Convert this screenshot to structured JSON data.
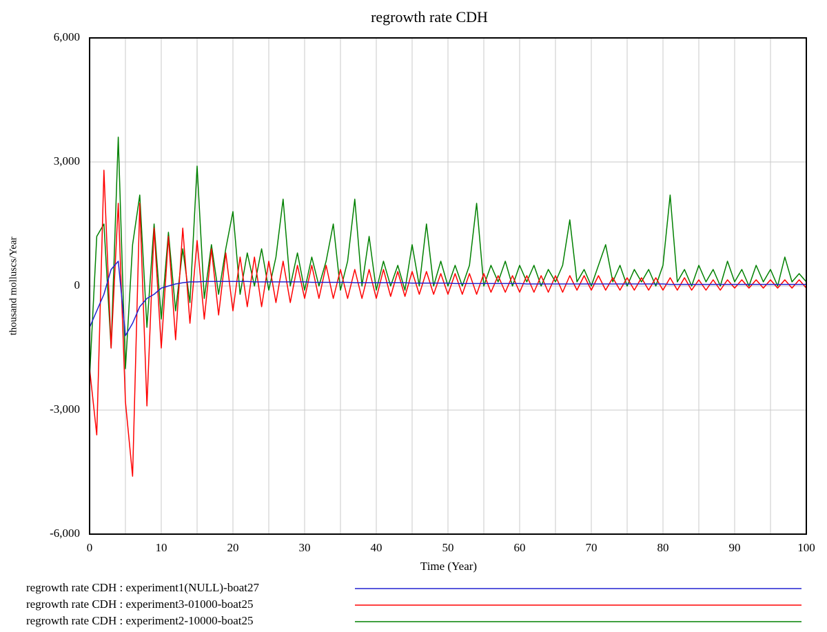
{
  "chart_data": {
    "type": "line",
    "title": "regrowth rate CDH",
    "xlabel": "Time (Year)",
    "ylabel": "thousand molluscs/Year",
    "xlim": [
      0,
      100
    ],
    "xticks": [
      0,
      10,
      20,
      30,
      40,
      50,
      60,
      70,
      80,
      90,
      100
    ],
    "xminor": [
      5,
      15,
      25,
      35,
      45,
      55,
      65,
      75,
      85,
      95
    ],
    "ylim": [
      -6000,
      6000
    ],
    "yticks": [
      {
        "value": -6000,
        "label": "-6,000"
      },
      {
        "value": -3000,
        "label": "-3,000"
      },
      0,
      {
        "value": 3000,
        "label": "3,000"
      },
      {
        "value": 6000,
        "label": "6,000"
      }
    ],
    "grid": true,
    "x": [
      0,
      1,
      2,
      3,
      4,
      5,
      6,
      7,
      8,
      9,
      10,
      11,
      12,
      13,
      14,
      15,
      16,
      17,
      18,
      19,
      20,
      21,
      22,
      23,
      24,
      25,
      26,
      27,
      28,
      29,
      30,
      31,
      32,
      33,
      34,
      35,
      36,
      37,
      38,
      39,
      40,
      41,
      42,
      43,
      44,
      45,
      46,
      47,
      48,
      49,
      50,
      51,
      52,
      53,
      54,
      55,
      56,
      57,
      58,
      59,
      60,
      61,
      62,
      63,
      64,
      65,
      66,
      67,
      68,
      69,
      70,
      71,
      72,
      73,
      74,
      75,
      76,
      77,
      78,
      79,
      80,
      81,
      82,
      83,
      84,
      85,
      86,
      87,
      88,
      89,
      90,
      91,
      92,
      93,
      94,
      95,
      96,
      97,
      98,
      99,
      100
    ],
    "series": [
      {
        "name": "regrowth rate CDH : experiment1(NULL)-boat27",
        "color": "#2020d0",
        "values": [
          -1000,
          -600,
          -200,
          400,
          600,
          -1200,
          -900,
          -500,
          -300,
          -200,
          -50,
          0,
          50,
          80,
          100,
          100,
          110,
          110,
          110,
          110,
          110,
          110,
          110,
          100,
          100,
          100,
          100,
          100,
          100,
          100,
          100,
          90,
          90,
          90,
          90,
          90,
          90,
          80,
          80,
          80,
          80,
          80,
          80,
          80,
          80,
          70,
          70,
          70,
          70,
          70,
          70,
          60,
          60,
          60,
          60,
          60,
          60,
          60,
          60,
          60,
          60,
          50,
          50,
          50,
          50,
          50,
          50,
          50,
          50,
          50,
          50,
          50,
          50,
          50,
          50,
          50,
          50,
          50,
          50,
          50,
          50,
          40,
          40,
          40,
          40,
          40,
          40,
          40,
          40,
          40,
          40,
          40,
          40,
          40,
          40,
          40,
          40,
          40,
          40,
          40,
          40
        ]
      },
      {
        "name": "regrowth rate CDH : experiment3-01000-boat25",
        "color": "#ff0000",
        "values": [
          -2000,
          -3600,
          2800,
          -1500,
          2000,
          -2800,
          -4600,
          2000,
          -2900,
          1400,
          -1500,
          1200,
          -1300,
          1400,
          -900,
          1100,
          -800,
          900,
          -700,
          800,
          -600,
          700,
          -500,
          700,
          -500,
          600,
          -400,
          600,
          -400,
          500,
          -300,
          500,
          -300,
          500,
          -300,
          400,
          -300,
          400,
          -300,
          400,
          -300,
          400,
          -250,
          350,
          -250,
          350,
          -200,
          350,
          -200,
          300,
          -200,
          300,
          -200,
          300,
          -200,
          300,
          -150,
          250,
          -150,
          250,
          -150,
          250,
          -150,
          250,
          -150,
          250,
          -150,
          250,
          -100,
          250,
          -100,
          250,
          -100,
          200,
          -100,
          200,
          -100,
          200,
          -100,
          200,
          -100,
          200,
          -100,
          200,
          -100,
          150,
          -100,
          150,
          -100,
          150,
          -50,
          150,
          -50,
          150,
          -50,
          150,
          -50,
          150,
          -50,
          150,
          -50
        ]
      },
      {
        "name": "regrowth rate CDH : experiment2-10000-boat25",
        "color": "#008000",
        "values": [
          -2200,
          1200,
          1500,
          -1500,
          3600,
          -2000,
          1000,
          2200,
          -1000,
          1500,
          -800,
          1300,
          -600,
          900,
          -400,
          2900,
          -300,
          1000,
          -200,
          900,
          1800,
          -200,
          800,
          0,
          900,
          -100,
          700,
          2100,
          0,
          800,
          -100,
          700,
          0,
          600,
          1500,
          -100,
          600,
          2100,
          0,
          1200,
          -100,
          600,
          0,
          500,
          -100,
          1000,
          0,
          1500,
          0,
          600,
          0,
          500,
          0,
          500,
          2000,
          0,
          500,
          100,
          600,
          0,
          500,
          100,
          500,
          0,
          400,
          100,
          500,
          1600,
          100,
          400,
          0,
          500,
          1000,
          100,
          500,
          0,
          400,
          100,
          400,
          0,
          500,
          2200,
          100,
          400,
          0,
          500,
          100,
          400,
          0,
          600,
          100,
          400,
          0,
          500,
          100,
          400,
          0,
          700,
          100,
          300,
          100
        ]
      }
    ]
  }
}
